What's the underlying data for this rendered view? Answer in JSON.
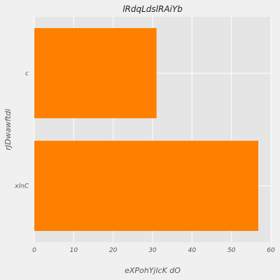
{
  "chart_data": {
    "type": "bar",
    "orientation": "horizontal",
    "title": "lRdqLdslRAiYb",
    "xlabel": "eXPohYjlcK dO",
    "ylabel": "rJDwawftdi",
    "categories": [
      "xlnC",
      "c"
    ],
    "values": [
      56.8,
      31.0
    ],
    "xlim": [
      0,
      60
    ],
    "xticks": [
      0,
      10,
      20,
      30,
      40,
      50,
      60
    ],
    "grid": true,
    "bar_color": "#ff7f00",
    "plot_background": "#e5e5e5",
    "page_background": "#f0f0f0"
  }
}
